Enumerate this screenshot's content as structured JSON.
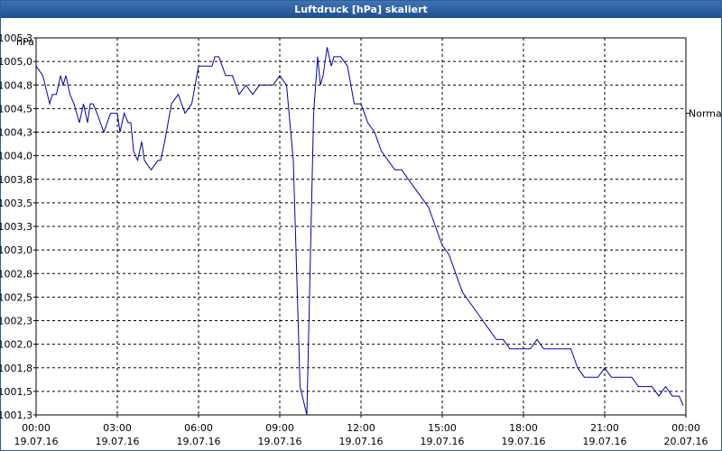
{
  "window": {
    "title": "Luftdruck [hPa] skaliert"
  },
  "chart_data": {
    "type": "line",
    "title": "Luftdruck [hPa] skaliert",
    "ylabel": "hPa",
    "ylim": [
      1001.3,
      1005.3
    ],
    "xlim": [
      0,
      24
    ],
    "grid": true,
    "series_label": "Normal",
    "series_label_value": 1004.5,
    "line_color": "#0000aa",
    "y_ticks": [
      "1005,3",
      "1005,0",
      "1004,8",
      "1004,5",
      "1004,3",
      "1004,0",
      "1003,8",
      "1003,5",
      "1003,3",
      "1003,0",
      "1002,8",
      "1002,5",
      "1002,3",
      "1002,0",
      "1001,8",
      "1001,5",
      "1001,3"
    ],
    "x_ticks": [
      {
        "time": "00:00",
        "date": "19.07.16"
      },
      {
        "time": "03:00",
        "date": "19.07.16"
      },
      {
        "time": "06:00",
        "date": "19.07.16"
      },
      {
        "time": "09:00",
        "date": "19.07.16"
      },
      {
        "time": "12:00",
        "date": "19.07.16"
      },
      {
        "time": "15:00",
        "date": "19.07.16"
      },
      {
        "time": "18:00",
        "date": "19.07.16"
      },
      {
        "time": "21:00",
        "date": "19.07.16"
      },
      {
        "time": "00:00",
        "date": "20.07.16"
      }
    ],
    "series": [
      {
        "x": [
          0.0,
          0.25,
          0.5,
          0.6,
          0.75,
          0.9,
          1.0,
          1.1,
          1.25,
          1.4,
          1.5,
          1.6,
          1.75,
          1.9,
          2.0,
          2.1,
          2.25,
          2.5,
          2.75,
          2.9,
          3.0,
          3.1,
          3.25,
          3.4,
          3.5,
          3.6,
          3.75,
          3.9,
          4.0,
          4.25,
          4.5,
          4.6,
          4.75,
          5.0,
          5.25,
          5.5,
          5.75,
          6.0,
          6.1,
          6.25,
          6.5,
          6.6,
          6.75,
          7.0,
          7.25,
          7.5,
          7.75,
          8.0,
          8.25,
          8.5,
          8.75,
          9.0,
          9.25,
          9.5,
          9.75,
          10.0,
          10.25,
          10.4,
          10.5,
          10.6,
          10.75,
          10.9,
          11.0,
          11.25,
          11.5,
          11.75,
          12.0,
          12.25,
          12.5,
          12.75,
          13.0,
          13.25,
          13.5,
          13.75,
          14.0,
          14.25,
          14.5,
          14.75,
          15.0,
          15.25,
          15.5,
          15.75,
          16.0,
          16.25,
          16.5,
          16.75,
          17.0,
          17.25,
          17.5,
          17.75,
          18.0,
          18.25,
          18.5,
          18.75,
          19.0,
          19.25,
          19.5,
          19.75,
          20.0,
          20.25,
          20.5,
          20.75,
          21.0,
          21.25,
          21.5,
          21.75,
          22.0,
          22.25,
          22.5,
          22.75,
          23.0,
          23.25,
          23.5,
          23.75,
          23.9
        ],
        "y": [
          1005.0,
          1004.9,
          1004.6,
          1004.7,
          1004.7,
          1004.9,
          1004.8,
          1004.9,
          1004.7,
          1004.6,
          1004.5,
          1004.4,
          1004.6,
          1004.4,
          1004.6,
          1004.6,
          1004.5,
          1004.3,
          1004.5,
          1004.5,
          1004.5,
          1004.3,
          1004.5,
          1004.4,
          1004.4,
          1004.1,
          1004.0,
          1004.2,
          1004.0,
          1003.9,
          1004.0,
          1004.0,
          1004.2,
          1004.6,
          1004.7,
          1004.5,
          1004.6,
          1005.0,
          1005.0,
          1005.0,
          1005.0,
          1005.1,
          1005.1,
          1004.9,
          1004.9,
          1004.7,
          1004.8,
          1004.7,
          1004.8,
          1004.8,
          1004.8,
          1004.9,
          1004.8,
          1004.0,
          1001.6,
          1001.3,
          1004.5,
          1005.1,
          1004.8,
          1004.9,
          1005.2,
          1005.0,
          1005.1,
          1005.1,
          1005.0,
          1004.6,
          1004.6,
          1004.4,
          1004.3,
          1004.1,
          1004.0,
          1003.9,
          1003.9,
          1003.8,
          1003.7,
          1003.6,
          1003.5,
          1003.3,
          1003.1,
          1003.0,
          1002.8,
          1002.6,
          1002.5,
          1002.4,
          1002.3,
          1002.2,
          1002.1,
          1002.1,
          1002.0,
          1002.0,
          1002.0,
          1002.0,
          1002.1,
          1002.0,
          1002.0,
          1002.0,
          1002.0,
          1002.0,
          1001.8,
          1001.7,
          1001.7,
          1001.7,
          1001.8,
          1001.7,
          1001.7,
          1001.7,
          1001.7,
          1001.6,
          1001.6,
          1001.6,
          1001.5,
          1001.6,
          1001.5,
          1001.5,
          1001.4
        ]
      }
    ]
  }
}
